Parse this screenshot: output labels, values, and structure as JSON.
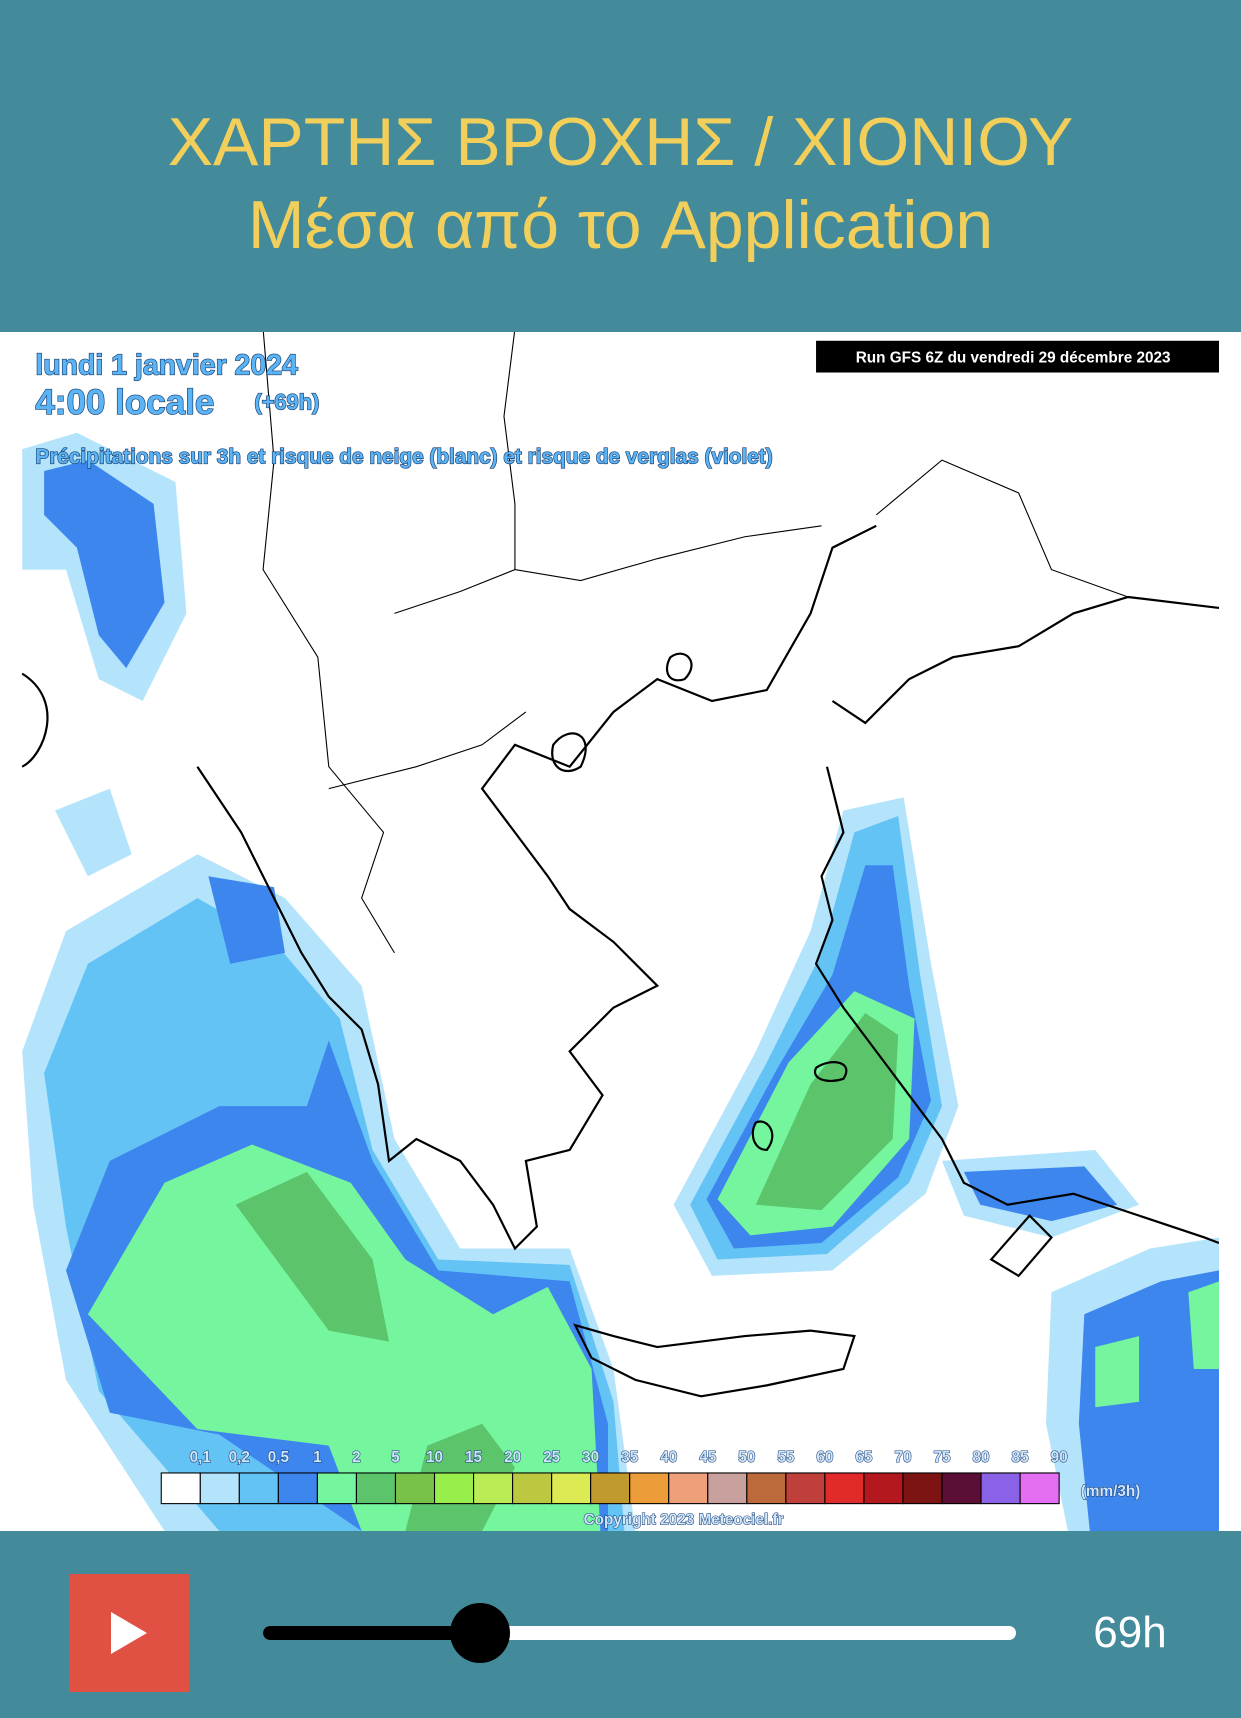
{
  "header": {
    "title": "ΧΑΡΤΗΣ ΒΡΟΧΗΣ / ΧΙΟΝΙΟΥ",
    "subtitle": "Μέσα από το Application"
  },
  "map": {
    "date": "lundi 1 janvier 2024",
    "time": "4:00 locale",
    "offset": "(+69h)",
    "description": "Précipitations sur 3h et risque de neige (blanc) et risque de verglas (violet)",
    "run": "Run GFS 6Z du vendredi 29 décembre 2023",
    "legend": [
      {
        "label": "0,1",
        "color": "#ffffff"
      },
      {
        "label": "0,2",
        "color": "#b4e4fb"
      },
      {
        "label": "0,5",
        "color": "#64c3f5"
      },
      {
        "label": "1",
        "color": "#3c86ee"
      },
      {
        "label": "2",
        "color": "#74f59e"
      },
      {
        "label": "5",
        "color": "#5cc46a"
      },
      {
        "label": "10",
        "color": "#79c24a"
      },
      {
        "label": "15",
        "color": "#98ef4c"
      },
      {
        "label": "20",
        "color": "#b9ec55"
      },
      {
        "label": "25",
        "color": "#bcc840"
      },
      {
        "label": "30",
        "color": "#dcea53"
      },
      {
        "label": "35",
        "color": "#c09a2c"
      },
      {
        "label": "40",
        "color": "#ec9c38"
      },
      {
        "label": "45",
        "color": "#eea07a"
      },
      {
        "label": "50",
        "color": "#c8a09e"
      },
      {
        "label": "55",
        "color": "#bc6a3c"
      },
      {
        "label": "60",
        "color": "#bf3f3a"
      },
      {
        "label": "65",
        "color": "#e02b2a"
      },
      {
        "label": "70",
        "color": "#b2181e"
      },
      {
        "label": "75",
        "color": "#7c1414"
      },
      {
        "label": "80",
        "color": "#5c0f36"
      },
      {
        "label": "85",
        "color": "#8a62e8"
      },
      {
        "label": "90",
        "color": "#e46ef2"
      }
    ],
    "unit": "(mm/3h)",
    "copyright": "Copyright 2023 Meteociel.fr"
  },
  "controls": {
    "time_label": "69h"
  }
}
